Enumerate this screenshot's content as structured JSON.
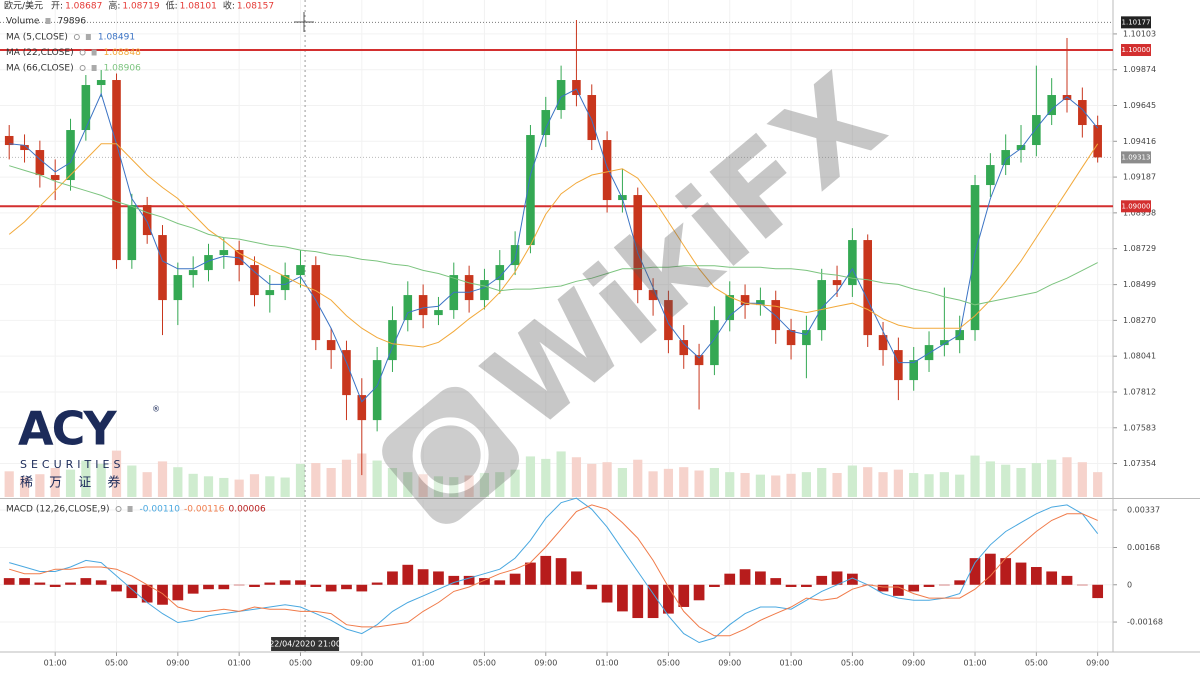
{
  "chart_data": {
    "type": "candlestick",
    "symbol": "欧元/美元",
    "readout": [
      {
        "label": "开:",
        "value": 1.08687
      },
      {
        "label": "高:",
        "value": 1.08719
      },
      {
        "label": "低:",
        "value": 1.08101
      },
      {
        "label": "收:",
        "value": 1.08157
      }
    ],
    "readout_color": "#e53935",
    "up_color": "#34a853",
    "down_color": "#c8361d",
    "grid": true,
    "xlim": [
      -0.6,
      72
    ],
    "xticks": [
      {
        "value": 3,
        "label": "01:00"
      },
      {
        "value": 7,
        "label": "05:00"
      },
      {
        "value": 11,
        "label": "09:00"
      },
      {
        "value": 15,
        "label": "01:00"
      },
      {
        "value": 19,
        "label": "05:00"
      },
      {
        "value": 23,
        "label": "09:00"
      },
      {
        "value": 27,
        "label": "01:00"
      },
      {
        "value": 31,
        "label": "05:00"
      },
      {
        "value": 35,
        "label": "09:00"
      },
      {
        "value": 39,
        "label": "01:00"
      },
      {
        "value": 43,
        "label": "05:00"
      },
      {
        "value": 47,
        "label": "09:00"
      },
      {
        "value": 51,
        "label": "01:00"
      },
      {
        "value": 55,
        "label": "05:00"
      },
      {
        "value": 59,
        "label": "09:00"
      },
      {
        "value": 63,
        "label": "01:00"
      },
      {
        "value": 67,
        "label": "05:00"
      },
      {
        "value": 71,
        "label": "09:00"
      }
    ],
    "ylim": [
      1.0714,
      1.1032
    ],
    "yticks": [
      {
        "value": 1.10103,
        "label": "1.10103"
      },
      {
        "value": 1.09874,
        "label": "1.09874"
      },
      {
        "value": 1.09645,
        "label": "1.09645"
      },
      {
        "value": 1.09416,
        "label": "1.09416"
      },
      {
        "value": 1.09187,
        "label": "1.09187"
      },
      {
        "value": 1.08958,
        "label": "1.08958"
      },
      {
        "value": 1.08729,
        "label": "1.08729"
      },
      {
        "value": 1.08499,
        "label": "1.08499"
      },
      {
        "value": 1.0827,
        "label": "1.08270"
      },
      {
        "value": 1.08041,
        "label": "1.08041"
      },
      {
        "value": 1.07812,
        "label": "1.07812"
      },
      {
        "value": 1.07583,
        "label": "1.07583"
      },
      {
        "value": 1.07354,
        "label": "1.07354"
      }
    ],
    "price_lines": [
      {
        "value": 1.10177,
        "label": "1.10177",
        "color": "#222222",
        "style": "dotted"
      },
      {
        "value": 1.1,
        "label": "1.10000",
        "color": "#d32f2f",
        "style": "solid"
      },
      {
        "value": 1.09313,
        "label": "1.09313",
        "color": "#8c8c8c",
        "style": "dotted"
      },
      {
        "value": 1.09,
        "label": "1.09000",
        "color": "#d32f2f",
        "style": "solid"
      }
    ],
    "crosshair": {
      "x": 19.3,
      "label": "22/04/2020  21:00"
    },
    "candles": [
      [
        1.0945,
        1.0952,
        1.093,
        1.09392
      ],
      [
        1.09392,
        1.0946,
        1.0928,
        1.0936
      ],
      [
        1.0936,
        1.0942,
        1.0912,
        1.092
      ],
      [
        1.092,
        1.093,
        1.0904,
        1.09168
      ],
      [
        1.09168,
        1.0956,
        1.091,
        1.09488
      ],
      [
        1.09488,
        1.0984,
        1.0942,
        1.09776
      ],
      [
        1.09776,
        1.09872,
        1.097,
        1.09808
      ],
      [
        1.09808,
        1.0985,
        1.086,
        1.08656
      ],
      [
        1.08656,
        1.0908,
        1.086,
        1.09008
      ],
      [
        1.09008,
        1.0906,
        1.0876,
        1.08816
      ],
      [
        1.08816,
        1.0888,
        1.08176,
        1.084
      ],
      [
        1.084,
        1.0864,
        1.0824,
        1.0856
      ],
      [
        1.0856,
        1.0868,
        1.0848,
        1.08592
      ],
      [
        1.08592,
        1.0876,
        1.0852,
        1.08688
      ],
      [
        1.08688,
        1.088,
        1.086,
        1.0872
      ],
      [
        1.0872,
        1.0878,
        1.0852,
        1.08624
      ],
      [
        1.08624,
        1.0868,
        1.0836,
        1.08432
      ],
      [
        1.08432,
        1.0856,
        1.0832,
        1.08464
      ],
      [
        1.08464,
        1.0864,
        1.084,
        1.0856
      ],
      [
        1.0856,
        1.0872,
        1.0848,
        1.08624
      ],
      [
        1.08624,
        1.0868,
        1.0808,
        1.08144
      ],
      [
        1.08144,
        1.0822,
        1.0796,
        1.0808
      ],
      [
        1.0808,
        1.0814,
        1.07632,
        1.07792
      ],
      [
        1.07792,
        1.079,
        1.0728,
        1.07632
      ],
      [
        1.07632,
        1.081,
        1.0756,
        1.08016
      ],
      [
        1.08016,
        1.0836,
        1.0794,
        1.08272
      ],
      [
        1.08272,
        1.0852,
        1.082,
        1.08432
      ],
      [
        1.08432,
        1.085,
        1.0822,
        1.08304
      ],
      [
        1.08304,
        1.0842,
        1.0824,
        1.08336
      ],
      [
        1.08336,
        1.0864,
        1.0828,
        1.0856
      ],
      [
        1.0856,
        1.0862,
        1.0832,
        1.084
      ],
      [
        1.084,
        1.086,
        1.0834,
        1.08528
      ],
      [
        1.08528,
        1.0872,
        1.0844,
        1.08624
      ],
      [
        1.08624,
        1.0884,
        1.0856,
        1.08752
      ],
      [
        1.08752,
        1.0952,
        1.087,
        1.09456
      ],
      [
        1.09456,
        1.097,
        1.0938,
        1.09616
      ],
      [
        1.09616,
        1.099,
        1.0956,
        1.09808
      ],
      [
        1.09808,
        1.10192,
        1.0964,
        1.09712
      ],
      [
        1.09712,
        1.0978,
        1.0936,
        1.09424
      ],
      [
        1.09424,
        1.0948,
        1.0896,
        1.0904
      ],
      [
        1.0904,
        1.0924,
        1.0896,
        1.09072
      ],
      [
        1.09072,
        1.0912,
        1.0838,
        1.08464
      ],
      [
        1.08464,
        1.0854,
        1.083,
        1.084
      ],
      [
        1.084,
        1.0846,
        1.0806,
        1.08144
      ],
      [
        1.08144,
        1.0824,
        1.0796,
        1.08048
      ],
      [
        1.08048,
        1.0812,
        1.077,
        1.07984
      ],
      [
        1.07984,
        1.0836,
        1.0792,
        1.08272
      ],
      [
        1.08272,
        1.0852,
        1.082,
        1.08432
      ],
      [
        1.08432,
        1.085,
        1.0828,
        1.08368
      ],
      [
        1.08368,
        1.0848,
        1.083,
        1.084
      ],
      [
        1.084,
        1.0846,
        1.0812,
        1.08208
      ],
      [
        1.08208,
        1.0828,
        1.0802,
        1.08112
      ],
      [
        1.08112,
        1.083,
        1.079,
        1.08208
      ],
      [
        1.08208,
        1.086,
        1.0814,
        1.08528
      ],
      [
        1.08528,
        1.0862,
        1.0842,
        1.08496
      ],
      [
        1.08496,
        1.0886,
        1.0842,
        1.08784
      ],
      [
        1.08784,
        1.0882,
        1.081,
        1.08176
      ],
      [
        1.08176,
        1.0826,
        1.0798,
        1.0808
      ],
      [
        1.0808,
        1.0816,
        1.0776,
        1.07888
      ],
      [
        1.07888,
        1.081,
        1.0782,
        1.08016
      ],
      [
        1.08016,
        1.082,
        1.0794,
        1.08112
      ],
      [
        1.08112,
        1.0848,
        1.0804,
        1.08144
      ],
      [
        1.08144,
        1.083,
        1.0806,
        1.08208
      ],
      [
        1.08208,
        1.092,
        1.0814,
        1.09136
      ],
      [
        1.09136,
        1.0934,
        1.0906,
        1.09264
      ],
      [
        1.09264,
        1.0946,
        1.092,
        1.0936
      ],
      [
        1.0936,
        1.0952,
        1.0928,
        1.09392
      ],
      [
        1.09392,
        1.099,
        1.0932,
        1.09584
      ],
      [
        1.09584,
        1.0982,
        1.0952,
        1.09712
      ],
      [
        1.09712,
        1.10077,
        1.096,
        1.0968
      ],
      [
        1.0968,
        1.0976,
        1.0944,
        1.0952
      ],
      [
        1.0952,
        1.0958,
        1.0928,
        1.09313
      ]
    ],
    "volume": {
      "name": "Volume",
      "readout": 79896,
      "up_color": "#cfeccf",
      "down_color": "#f6d3cc",
      "ylim": [
        0,
        1200000
      ],
      "values": [
        62000,
        48000,
        55000,
        70000,
        66000,
        88000,
        80000,
        112000,
        76000,
        60000,
        86000,
        72000,
        56000,
        50000,
        46000,
        42000,
        55000,
        50000,
        47000,
        79896,
        82000,
        70000,
        90000,
        105000,
        88000,
        70000,
        60000,
        55000,
        50000,
        48000,
        52000,
        58000,
        60000,
        66000,
        98000,
        92000,
        110000,
        96000,
        80000,
        84000,
        70000,
        90000,
        62000,
        68000,
        72000,
        64000,
        70000,
        60000,
        58000,
        54000,
        52000,
        56000,
        60000,
        70000,
        58000,
        76000,
        72000,
        60000,
        66000,
        58000,
        55000,
        60000,
        54000,
        100000,
        86000,
        78000,
        70000,
        82000,
        90000,
        96000,
        84000,
        60000
      ]
    },
    "series": [
      {
        "name": "MA (5,CLOSE)",
        "readout": 1.08491,
        "color": "#3b73c4",
        "values": [
          1.094,
          1.0939,
          1.093,
          1.0922,
          1.0928,
          1.095,
          1.0972,
          1.094,
          1.0905,
          1.089,
          1.0865,
          1.086,
          1.086,
          1.0865,
          1.0868,
          1.0867,
          1.0858,
          1.085,
          1.085,
          1.0855,
          1.084,
          1.0822,
          1.08,
          1.0775,
          1.0785,
          1.081,
          1.0832,
          1.0835,
          1.0836,
          1.0845,
          1.0845,
          1.0848,
          1.0855,
          1.0866,
          1.092,
          1.095,
          1.097,
          1.0975,
          1.0955,
          1.0925,
          1.0905,
          1.087,
          1.0848,
          1.0825,
          1.0812,
          1.0803,
          1.0815,
          1.083,
          1.0838,
          1.0838,
          1.083,
          1.082,
          1.0818,
          1.0835,
          1.0845,
          1.086,
          1.084,
          1.082,
          1.08,
          1.08,
          1.0806,
          1.0812,
          1.0818,
          1.087,
          1.0905,
          1.093,
          1.0937,
          1.095,
          1.0962,
          1.097,
          1.0962,
          1.095
        ]
      },
      {
        "name": "MA (22,CLOSE)",
        "readout": 1.08848,
        "color": "#f2a93b",
        "values": [
          1.0882,
          1.089,
          1.09,
          1.091,
          1.092,
          1.093,
          1.094,
          1.094,
          1.093,
          1.092,
          1.0912,
          1.0905,
          1.0895,
          1.0885,
          1.0878,
          1.087,
          1.0865,
          1.086,
          1.0855,
          1.085,
          1.0846,
          1.084,
          1.083,
          1.0822,
          1.0816,
          1.0812,
          1.0811,
          1.081,
          1.0813,
          1.082,
          1.0828,
          1.0835,
          1.0845,
          1.0858,
          1.0875,
          1.0895,
          1.0908,
          1.0915,
          1.092,
          1.0922,
          1.0924,
          1.0918,
          1.0905,
          1.089,
          1.0875,
          1.086,
          1.0848,
          1.0842,
          1.0838,
          1.0837,
          1.0836,
          1.0834,
          1.0832,
          1.0834,
          1.0836,
          1.0838,
          1.0834,
          1.0828,
          1.0824,
          1.0822,
          1.0822,
          1.0822,
          1.0822,
          1.083,
          1.084,
          1.0852,
          1.0865,
          1.088,
          1.0895,
          1.091,
          1.0925,
          1.094
        ]
      },
      {
        "name": "MA (66,CLOSE)",
        "readout": 1.08906,
        "color": "#7cc47f",
        "values": [
          1.0926,
          1.0923,
          1.092,
          1.0916,
          1.0913,
          1.091,
          1.0907,
          1.0903,
          1.09,
          1.0896,
          1.0893,
          1.0889,
          1.0886,
          1.0882,
          1.088,
          1.0879,
          1.0877,
          1.0875,
          1.0874,
          1.0872,
          1.0871,
          1.0869,
          1.0868,
          1.0866,
          1.0865,
          1.0863,
          1.0862,
          1.0859,
          1.0857,
          1.0854,
          1.0851,
          1.0849,
          1.0846,
          1.0847,
          1.0847,
          1.0848,
          1.0849,
          1.0852,
          1.0854,
          1.0857,
          1.086,
          1.086,
          1.0861,
          1.0861,
          1.0862,
          1.0862,
          1.0862,
          1.0861,
          1.0861,
          1.0861,
          1.086,
          1.086,
          1.0859,
          1.0857,
          1.0856,
          1.0854,
          1.0853,
          1.0851,
          1.085,
          1.0847,
          1.0845,
          1.0842,
          1.084,
          1.0837,
          1.0839,
          1.0841,
          1.0843,
          1.0845,
          1.085,
          1.0854,
          1.0859,
          1.0864
        ]
      }
    ],
    "macd": {
      "name": "MACD (12,26,CLOSE,9)",
      "readout": {
        "values": [
          -0.0011,
          -0.00116,
          6e-05
        ],
        "value_labels": [
          "-0.00110",
          "-0.00116",
          "0.00006"
        ]
      },
      "ylim": [
        -0.00303,
        0.00382
      ],
      "yticks": [
        0.00337,
        0.00168,
        0,
        -0.00168
      ],
      "histogram": {
        "color": "#b71c1c",
        "values": [
          0.0003,
          0.0003,
          0.0001,
          -0.0001,
          0.0001,
          0.0003,
          0.0002,
          -0.0003,
          -0.0006,
          -0.0008,
          -0.0009,
          -0.0007,
          -0.0004,
          -0.0002,
          -0.0002,
          0,
          -0.0001,
          0.0001,
          0.0002,
          0.0002,
          -0.0001,
          -0.0003,
          -0.0002,
          -0.0003,
          0.0001,
          0.0006,
          0.0009,
          0.0007,
          0.0006,
          0.0004,
          0.0004,
          0.0003,
          0.0002,
          0.0005,
          0.001,
          0.0013,
          0.0012,
          0.0006,
          -0.0002,
          -0.0008,
          -0.0012,
          -0.0015,
          -0.0015,
          -0.0013,
          -0.001,
          -0.0007,
          -0.0001,
          0.0005,
          0.0007,
          0.0006,
          0.0003,
          -0.0001,
          -0.0001,
          0.0004,
          0.0006,
          0.0005,
          0,
          -0.0003,
          -0.0005,
          -0.0003,
          -0.0001,
          0,
          0.0002,
          0.0012,
          0.0014,
          0.0012,
          0.001,
          0.0008,
          0.0006,
          0.0004,
          0,
          -0.0006
        ]
      },
      "series": [
        {
          "color": "#4aa8e0",
          "values": [
            0.001,
            0.0008,
            0.0006,
            0.0006,
            0.0008,
            0.0011,
            0.001,
            0.0004,
            -0.0002,
            -0.0008,
            -0.0013,
            -0.0017,
            -0.0016,
            -0.0014,
            -0.0013,
            -0.0012,
            -0.0011,
            -0.001,
            -0.0009,
            -0.001,
            -0.0013,
            -0.0016,
            -0.002,
            -0.0022,
            -0.0018,
            -0.0012,
            -0.0008,
            -0.0005,
            -0.0002,
            0.0001,
            0.0003,
            0.0005,
            0.0007,
            0.0012,
            0.002,
            0.003,
            0.0037,
            0.0039,
            0.0034,
            0.0026,
            0.0016,
            0.0006,
            -0.0004,
            -0.0014,
            -0.0022,
            -0.0026,
            -0.0024,
            -0.0018,
            -0.0013,
            -0.001,
            -0.001,
            -0.0011,
            -0.0007,
            -0.0003,
            0,
            0.0003,
            0,
            -0.0004,
            -0.0006,
            -0.0007,
            -0.0007,
            -0.0006,
            -0.0004,
            0.001,
            0.0018,
            0.0024,
            0.0028,
            0.0032,
            0.0035,
            0.0036,
            0.0032,
            0.0023
          ]
        },
        {
          "color": "#f07b4a",
          "values": [
            0.0007,
            0.0005,
            0.0005,
            0.0007,
            0.0007,
            0.0008,
            0.0008,
            0.0007,
            0.0004,
            0,
            -0.0004,
            -0.001,
            -0.0012,
            -0.0012,
            -0.0011,
            -0.0012,
            -0.001,
            -0.0011,
            -0.0011,
            -0.0012,
            -0.0012,
            -0.0013,
            -0.0018,
            -0.0019,
            -0.0019,
            -0.0018,
            -0.0017,
            -0.0012,
            -0.0008,
            -0.0003,
            -0.0001,
            0.0002,
            0.0005,
            0.0007,
            0.001,
            0.0017,
            0.0025,
            0.0033,
            0.0036,
            0.0034,
            0.0028,
            0.0021,
            0.0011,
            -0.0001,
            -0.0012,
            -0.0019,
            -0.0023,
            -0.0023,
            -0.002,
            -0.0016,
            -0.0013,
            -0.001,
            -0.0006,
            -0.0007,
            -0.0006,
            -0.0002,
            0,
            -0.0001,
            -0.0001,
            -0.0004,
            -0.0006,
            -0.0006,
            -0.0006,
            -0.0002,
            0.0004,
            0.0012,
            0.0018,
            0.0024,
            0.0029,
            0.0032,
            0.0032,
            0.0029
          ]
        }
      ]
    }
  },
  "logo": {
    "brand": "ACY",
    "mark": "®",
    "tagline": "SECURITIES",
    "chinese": "稀 万 证 券"
  },
  "watermark": "WikiFX"
}
